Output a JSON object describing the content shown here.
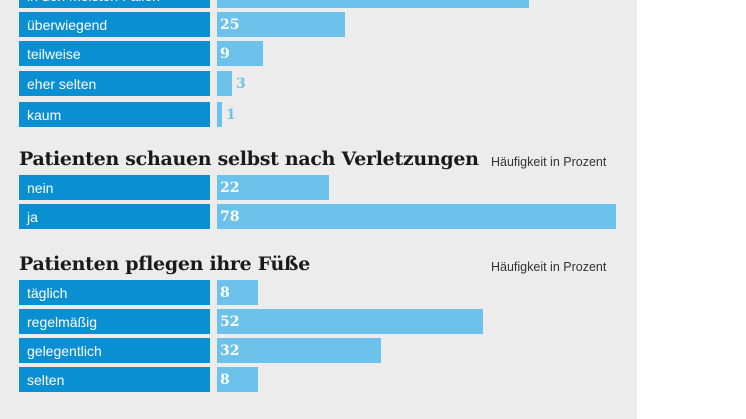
{
  "colors": {
    "label_bg": "#0a8fd3",
    "bar": "#6cc2ea",
    "panel": "#ececec"
  },
  "chart_data": [
    {
      "type": "bar",
      "orientation": "horizontal",
      "title": "",
      "categories": [
        "in den meisten Fällen",
        "überwiegend",
        "teilweise",
        "eher selten",
        "kaum"
      ],
      "values": [
        61,
        25,
        9,
        3,
        1
      ],
      "xlim": [
        0,
        80
      ]
    },
    {
      "type": "bar",
      "orientation": "horizontal",
      "title": "Patienten schauen selbst nach Verletzungen",
      "subtitle": "Häufigkeit in Prozent",
      "categories": [
        "nein",
        "ja"
      ],
      "values": [
        22,
        78
      ],
      "xlim": [
        0,
        80
      ]
    },
    {
      "type": "bar",
      "orientation": "horizontal",
      "title": "Patienten pflegen ihre Füße",
      "subtitle": "Häufigkeit in Prozent",
      "categories": [
        "täglich",
        "regelmäßig",
        "gelegentlich",
        "selten"
      ],
      "values": [
        8,
        52,
        32,
        8
      ],
      "xlim": [
        0,
        80
      ]
    }
  ]
}
